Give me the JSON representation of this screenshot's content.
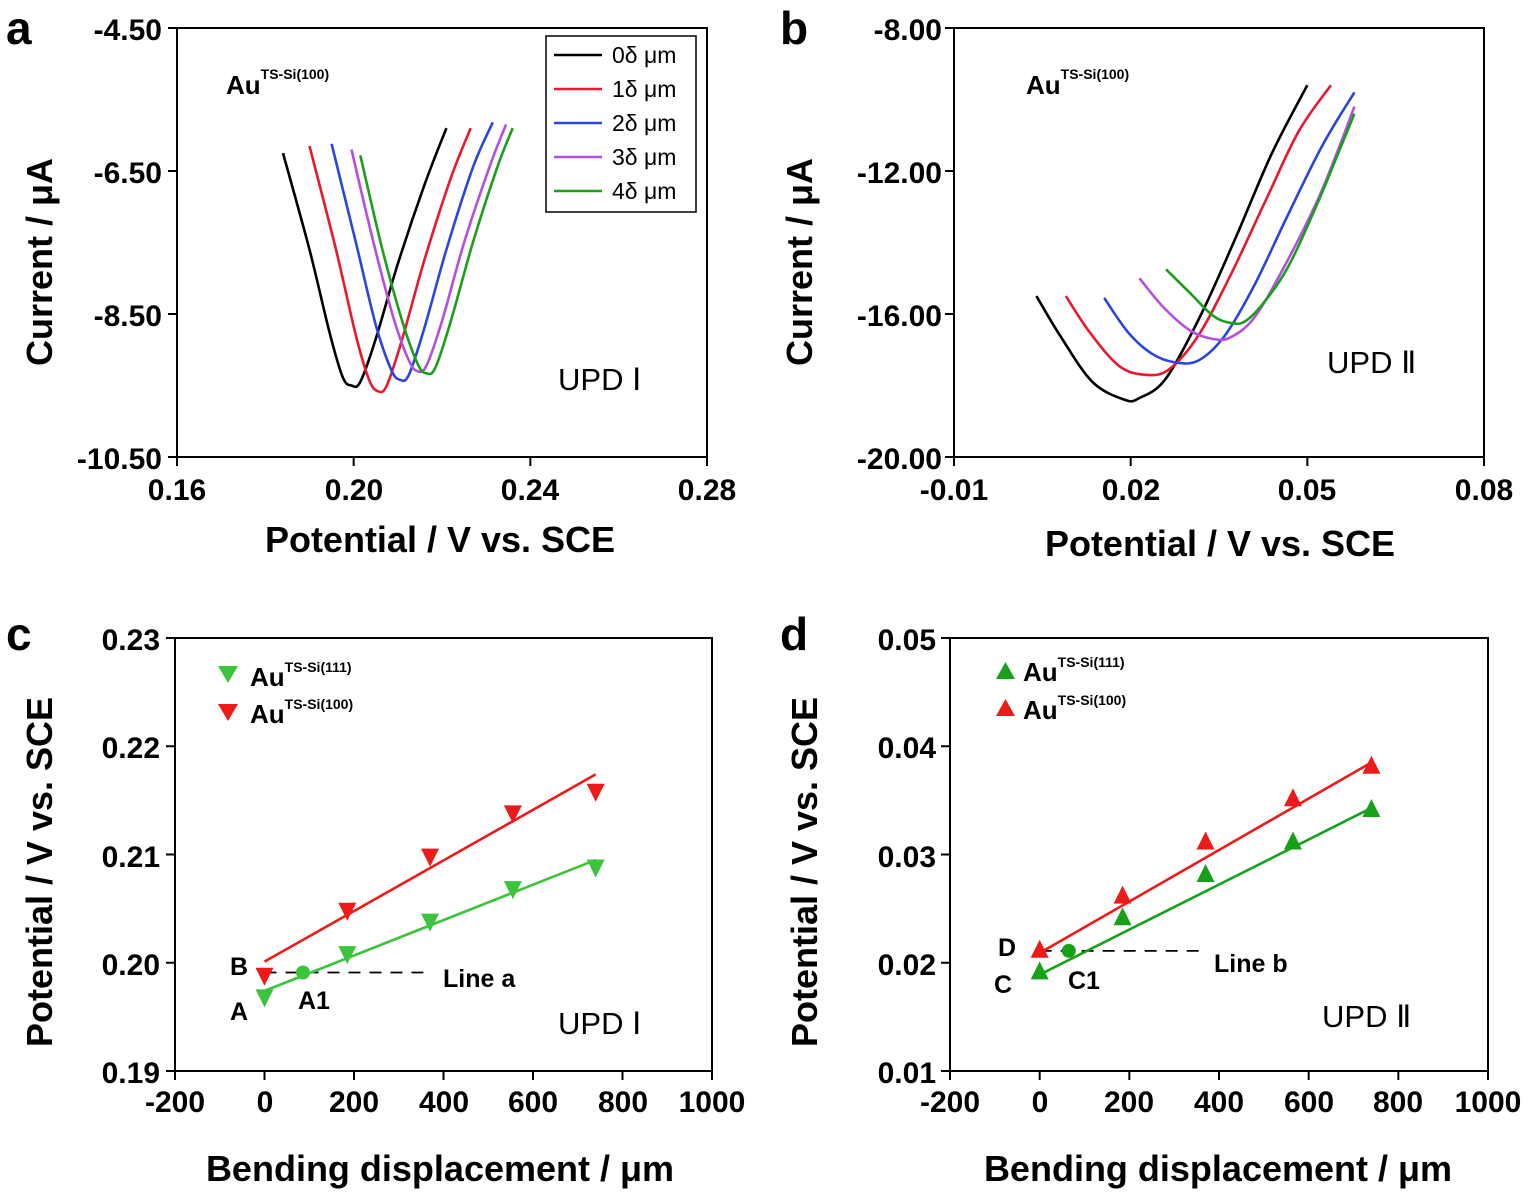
{
  "panels": [
    {
      "id": "a",
      "letter": "a",
      "xlabel": "Potential / V vs. SCE",
      "ylabel": "Current / μA",
      "xticks": [
        "0.16",
        "0.20",
        "0.24",
        "0.28"
      ],
      "yticks": [
        "-4.50",
        "-6.50",
        "-8.50",
        "-10.50"
      ],
      "sample": {
        "base": "Au",
        "sup": "TS-Si(100)"
      },
      "legend": [
        "0δ μm",
        "1δ μm",
        "2δ μm",
        "3δ μm",
        "4δ μm"
      ],
      "region": "UPD  Ⅰ"
    },
    {
      "id": "b",
      "letter": "b",
      "xlabel": "Potential / V vs. SCE",
      "ylabel": "Current / μA",
      "xticks": [
        "-0.01",
        "0.02",
        "0.05",
        "0.08"
      ],
      "yticks": [
        "-8.00",
        "-12.00",
        "-16.00",
        "-20.00"
      ],
      "sample": {
        "base": "Au",
        "sup": "TS-Si(100)"
      },
      "region": "UPD  Ⅱ"
    },
    {
      "id": "c",
      "letter": "c",
      "xlabel": "Bending displacement / μm",
      "ylabel": "Potential / V vs. SCE",
      "xticks": [
        "-200",
        "0",
        "200",
        "400",
        "600",
        "800",
        "1000"
      ],
      "yticks": [
        "0.23",
        "0.22",
        "0.21",
        "0.20",
        "0.19"
      ],
      "legend": [
        {
          "base": "Au",
          "sup": "TS-Si(111)"
        },
        {
          "base": "Au",
          "sup": "TS-Si(100)"
        }
      ],
      "points": {
        "A": "A",
        "B": "B",
        "A1": "A1"
      },
      "line_label": "Line a",
      "region": "UPD  Ⅰ"
    },
    {
      "id": "d",
      "letter": "d",
      "xlabel": "Bending displacement / μm",
      "ylabel": "Potential / V vs. SCE",
      "xticks": [
        "-200",
        "0",
        "200",
        "400",
        "600",
        "800",
        "1000"
      ],
      "yticks": [
        "0.05",
        "0.04",
        "0.03",
        "0.02",
        "0.01"
      ],
      "legend": [
        {
          "base": "Au",
          "sup": "TS-Si(111)"
        },
        {
          "base": "Au",
          "sup": "TS-Si(100)"
        }
      ],
      "points": {
        "C": "C",
        "D": "D",
        "C1": "C1"
      },
      "line_label": "Line b",
      "region": "UPD  Ⅱ"
    }
  ],
  "colors": {
    "black": "#000000",
    "red": "#e8192c",
    "blue": "#2a45e0",
    "purple": "#b44fe0",
    "green": "#19a019",
    "scatter_green": "#3cc43c",
    "scatter_red": "#ee1a1a"
  },
  "chart_data": [
    {
      "panel": "a",
      "type": "line",
      "xlabel": "Potential / V vs. SCE",
      "ylabel": "Current / μA",
      "xlim": [
        0.16,
        0.28
      ],
      "ylim": [
        -10.5,
        -4.5
      ],
      "series": [
        {
          "name": "0δ μm",
          "color": "#000000",
          "points": [
            [
              0.184,
              -6.25
            ],
            [
              0.19,
              -7.6
            ],
            [
              0.1945,
              -8.75
            ],
            [
              0.1975,
              -9.38
            ],
            [
              0.1995,
              -9.5
            ],
            [
              0.2015,
              -9.45
            ],
            [
              0.205,
              -8.85
            ],
            [
              0.21,
              -7.8
            ],
            [
              0.216,
              -6.7
            ],
            [
              0.221,
              -5.9
            ]
          ]
        },
        {
          "name": "1δ μm",
          "color": "#e8192c",
          "points": [
            [
              0.19,
              -6.15
            ],
            [
              0.196,
              -7.6
            ],
            [
              0.2005,
              -8.8
            ],
            [
              0.2035,
              -9.42
            ],
            [
              0.2055,
              -9.58
            ],
            [
              0.2075,
              -9.5
            ],
            [
              0.211,
              -8.85
            ],
            [
              0.216,
              -7.75
            ],
            [
              0.222,
              -6.6
            ],
            [
              0.2265,
              -5.9
            ]
          ]
        },
        {
          "name": "2δ μm",
          "color": "#2a45e0",
          "points": [
            [
              0.195,
              -6.12
            ],
            [
              0.2005,
              -7.5
            ],
            [
              0.205,
              -8.65
            ],
            [
              0.2085,
              -9.28
            ],
            [
              0.2105,
              -9.42
            ],
            [
              0.2125,
              -9.35
            ],
            [
              0.216,
              -8.7
            ],
            [
              0.221,
              -7.6
            ],
            [
              0.227,
              -6.45
            ],
            [
              0.2315,
              -5.82
            ]
          ]
        },
        {
          "name": "3δ μm",
          "color": "#b44fe0",
          "points": [
            [
              0.1995,
              -6.2
            ],
            [
              0.2045,
              -7.5
            ],
            [
              0.209,
              -8.55
            ],
            [
              0.2125,
              -9.15
            ],
            [
              0.2145,
              -9.3
            ],
            [
              0.2165,
              -9.22
            ],
            [
              0.22,
              -8.6
            ],
            [
              0.225,
              -7.5
            ],
            [
              0.231,
              -6.4
            ],
            [
              0.2345,
              -5.85
            ]
          ]
        },
        {
          "name": "4δ μm",
          "color": "#19a019",
          "points": [
            [
              0.2015,
              -6.28
            ],
            [
              0.2065,
              -7.6
            ],
            [
              0.211,
              -8.6
            ],
            [
              0.2145,
              -9.2
            ],
            [
              0.2165,
              -9.33
            ],
            [
              0.2185,
              -9.25
            ],
            [
              0.222,
              -8.6
            ],
            [
              0.227,
              -7.5
            ],
            [
              0.2325,
              -6.45
            ],
            [
              0.236,
              -5.9
            ]
          ]
        }
      ]
    },
    {
      "panel": "b",
      "type": "line",
      "xlabel": "Potential / V vs. SCE",
      "ylabel": "Current / μA",
      "xlim": [
        -0.01,
        0.08
      ],
      "ylim": [
        -20,
        -8
      ],
      "series": [
        {
          "color": "#000000",
          "points": [
            [
              0.004,
              -15.5
            ],
            [
              0.008,
              -16.6
            ],
            [
              0.0135,
              -17.9
            ],
            [
              0.019,
              -18.4
            ],
            [
              0.0215,
              -18.35
            ],
            [
              0.026,
              -17.8
            ],
            [
              0.032,
              -16.0
            ],
            [
              0.038,
              -13.8
            ],
            [
              0.044,
              -11.5
            ],
            [
              0.05,
              -9.6
            ]
          ]
        },
        {
          "color": "#e8192c",
          "points": [
            [
              0.009,
              -15.5
            ],
            [
              0.013,
              -16.5
            ],
            [
              0.018,
              -17.45
            ],
            [
              0.0225,
              -17.7
            ],
            [
              0.0265,
              -17.55
            ],
            [
              0.0315,
              -16.6
            ],
            [
              0.037,
              -14.9
            ],
            [
              0.043,
              -12.8
            ],
            [
              0.0485,
              -10.9
            ],
            [
              0.054,
              -9.6
            ]
          ]
        },
        {
          "color": "#2a45e0",
          "points": [
            [
              0.0155,
              -15.55
            ],
            [
              0.0195,
              -16.5
            ],
            [
              0.0235,
              -17.1
            ],
            [
              0.0275,
              -17.35
            ],
            [
              0.0315,
              -17.3
            ],
            [
              0.036,
              -16.6
            ],
            [
              0.041,
              -15.2
            ],
            [
              0.0465,
              -13.3
            ],
            [
              0.0525,
              -11.3
            ],
            [
              0.058,
              -9.8
            ]
          ]
        },
        {
          "color": "#b44fe0",
          "points": [
            [
              0.0215,
              -15.0
            ],
            [
              0.0255,
              -15.8
            ],
            [
              0.03,
              -16.45
            ],
            [
              0.034,
              -16.7
            ],
            [
              0.037,
              -16.65
            ],
            [
              0.041,
              -16.1
            ],
            [
              0.046,
              -14.7
            ],
            [
              0.0515,
              -12.9
            ],
            [
              0.055,
              -11.5
            ],
            [
              0.058,
              -10.2
            ]
          ]
        },
        {
          "color": "#19a019",
          "points": [
            [
              0.026,
              -14.75
            ],
            [
              0.03,
              -15.4
            ],
            [
              0.034,
              -16.05
            ],
            [
              0.037,
              -16.25
            ],
            [
              0.0395,
              -16.2
            ],
            [
              0.043,
              -15.6
            ],
            [
              0.047,
              -14.6
            ],
            [
              0.052,
              -12.8
            ],
            [
              0.055,
              -11.6
            ],
            [
              0.058,
              -10.4
            ]
          ]
        }
      ]
    },
    {
      "panel": "c",
      "type": "scatter",
      "xlabel": "Bending displacement / μm",
      "ylabel": "Potential / V vs. SCE",
      "xlim": [
        -200,
        1000
      ],
      "ylim": [
        0.19,
        0.23
      ],
      "series": [
        {
          "name": "Au TS-Si(111)",
          "marker": "triangle-down",
          "color": "#3cc43c",
          "x": [
            0,
            185,
            370,
            555,
            740
          ],
          "y": [
            0.1968,
            0.2008,
            0.2038,
            0.2068,
            0.2088
          ],
          "fit": [
            [
              0,
              0.1974
            ],
            [
              740,
              0.2095
            ]
          ]
        },
        {
          "name": "Au TS-Si(100)",
          "marker": "triangle-down",
          "color": "#ee1a1a",
          "x": [
            0,
            185,
            370,
            555,
            740
          ],
          "y": [
            0.1988,
            0.2048,
            0.2098,
            0.2138,
            0.2158
          ],
          "fit": [
            [
              0,
              0.2001
            ],
            [
              740,
              0.2174
            ]
          ]
        }
      ],
      "annotations": {
        "A1": [
          86,
          0.1991
        ],
        "line_a_y": 0.1991,
        "line_a_x": [
          0,
          355
        ]
      }
    },
    {
      "panel": "d",
      "type": "scatter",
      "xlabel": "Bending displacement / μm",
      "ylabel": "Potential / V vs. SCE",
      "xlim": [
        -200,
        1000
      ],
      "ylim": [
        0.01,
        0.05
      ],
      "series": [
        {
          "name": "Au TS-Si(111)",
          "marker": "triangle-up",
          "color": "#19a019",
          "x": [
            0,
            185,
            370,
            565,
            740
          ],
          "y": [
            0.0192,
            0.0242,
            0.0282,
            0.0312,
            0.0342
          ],
          "fit": [
            [
              0,
              0.0189
            ],
            [
              740,
              0.0343
            ]
          ]
        },
        {
          "name": "Au TS-Si(100)",
          "marker": "triangle-up",
          "color": "#ee1a1a",
          "x": [
            0,
            185,
            370,
            565,
            740
          ],
          "y": [
            0.0212,
            0.0262,
            0.0312,
            0.0352,
            0.0382
          ],
          "fit": [
            [
              0,
              0.0209
            ],
            [
              740,
              0.0385
            ]
          ]
        }
      ],
      "annotations": {
        "C1": [
          65,
          0.0211
        ],
        "line_b_y": 0.0211,
        "line_b_x": [
          0,
          370
        ]
      }
    }
  ]
}
